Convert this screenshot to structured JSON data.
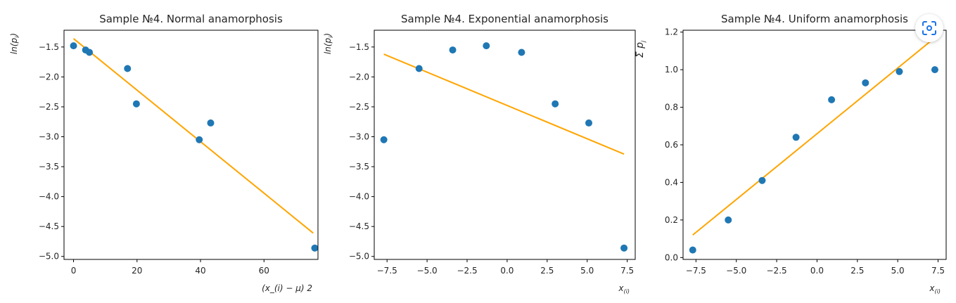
{
  "chart_data": [
    {
      "type": "scatter",
      "title": "Sample №4. Normal anamorphosis",
      "xlabel": "(x_(i) − μ) 2",
      "ylabel": "ln(p_i)",
      "xlim": [
        -3,
        77
      ],
      "ylim": [
        -5.05,
        -1.22
      ],
      "xticks": [
        0,
        20,
        40,
        60
      ],
      "xtick_labels": [
        "0",
        "20",
        "40",
        "60"
      ],
      "yticks": [
        -1.5,
        -2.0,
        -2.5,
        -3.0,
        -3.5,
        -4.0,
        -4.5,
        -5.0
      ],
      "ytick_labels": [
        "−1.5",
        "−2.0",
        "−2.5",
        "−3.0",
        "−3.5",
        "−4.0",
        "−4.5",
        "−5.0"
      ],
      "points": {
        "x": [
          0,
          3.8,
          5.0,
          17.0,
          19.8,
          39.6,
          43.2,
          76.0
        ],
        "y": [
          -1.48,
          -1.55,
          -1.59,
          -1.86,
          -2.45,
          -3.05,
          -2.77,
          -4.86
        ]
      },
      "fit_line": {
        "x": [
          0,
          75.5
        ],
        "y": [
          -1.36,
          -4.61
        ]
      }
    },
    {
      "type": "scatter",
      "title": "Sample №4. Exponential anamorphosis",
      "xlabel": "x_(i)",
      "ylabel": "ln(p_i)",
      "xlim": [
        -8.3,
        8.0
      ],
      "ylim": [
        -5.05,
        -1.22
      ],
      "xticks": [
        -7.5,
        -5.0,
        -2.5,
        0.0,
        2.5,
        5.0,
        7.5
      ],
      "xtick_labels": [
        "−7.5",
        "−5.0",
        "−2.5",
        "0.0",
        "2.5",
        "5.0",
        "7.5"
      ],
      "yticks": [
        -1.5,
        -2.0,
        -2.5,
        -3.0,
        -3.5,
        -4.0,
        -4.5,
        -5.0
      ],
      "ytick_labels": [
        "−1.5",
        "−2.0",
        "−2.5",
        "−3.0",
        "−3.5",
        "−4.0",
        "−4.5",
        "−5.0"
      ],
      "points": {
        "x": [
          -7.7,
          -5.5,
          -3.4,
          -1.3,
          0.9,
          3.0,
          5.1,
          7.3
        ],
        "y": [
          -3.05,
          -1.86,
          -1.55,
          -1.48,
          -1.59,
          -2.45,
          -2.77,
          -4.86
        ]
      },
      "fit_line": {
        "x": [
          -7.7,
          7.3
        ],
        "y": [
          -1.62,
          -3.29
        ]
      }
    },
    {
      "type": "scatter",
      "title": "Sample №4. Uniform anamorphosis",
      "xlabel": "x_(i)",
      "ylabel": "Σ_(j=1)^(i) p_j",
      "xlim": [
        -8.3,
        8.0
      ],
      "ylim": [
        -0.01,
        1.21
      ],
      "xticks": [
        -7.5,
        -5.0,
        -2.5,
        0.0,
        2.5,
        5.0,
        7.5
      ],
      "xtick_labels": [
        "−7.5",
        "−5.0",
        "−2.5",
        "0.0",
        "2.5",
        "5.0",
        "7.5"
      ],
      "yticks": [
        0.0,
        0.2,
        0.4,
        0.6,
        0.8,
        1.0,
        1.2
      ],
      "ytick_labels": [
        "0.0",
        "0.2",
        "0.4",
        "0.6",
        "0.8",
        "1.0",
        "1.2"
      ],
      "points": {
        "x": [
          -7.7,
          -5.5,
          -3.4,
          -1.3,
          0.9,
          3.0,
          5.1,
          7.3
        ],
        "y": [
          0.04,
          0.2,
          0.41,
          0.64,
          0.84,
          0.93,
          0.99,
          1.0
        ]
      },
      "fit_line": {
        "x": [
          -7.7,
          7.3
        ],
        "y": [
          0.12,
          1.17
        ]
      }
    }
  ],
  "colors": {
    "point": "#1f77b4",
    "fit_line": "#ffa500",
    "axis": "#000000",
    "lens": "#1a73e8"
  },
  "overlay": {
    "icon": "lens-icon"
  }
}
